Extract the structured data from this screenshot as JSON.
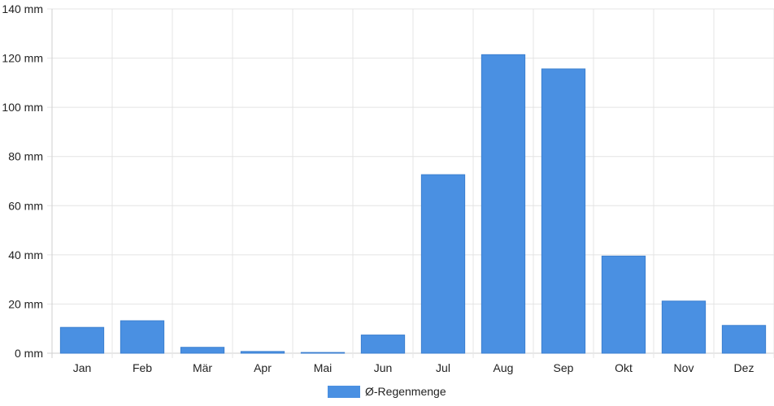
{
  "chart_data": {
    "type": "bar",
    "categories": [
      "Jan",
      "Feb",
      "Mär",
      "Apr",
      "Mai",
      "Jun",
      "Jul",
      "Aug",
      "Sep",
      "Okt",
      "Nov",
      "Dez"
    ],
    "series": [
      {
        "name": "Ø-Regenmenge",
        "values": [
          10.5,
          13.2,
          2.4,
          0.7,
          0.3,
          7.4,
          72.6,
          121.4,
          115.6,
          39.5,
          21.2,
          11.3
        ]
      }
    ],
    "y_ticks": [
      "0 mm",
      "20 mm",
      "40 mm",
      "60 mm",
      "80 mm",
      "100 mm",
      "120 mm",
      "140 mm"
    ],
    "ylim": [
      0,
      140
    ],
    "y_unit": "mm",
    "grid": true,
    "legend_position": "bottom",
    "colors": {
      "bar": "#4a90e2",
      "bar_stroke": "#3b7fd0",
      "grid": "#e4e4e4",
      "axis": "#cfcfcf"
    }
  }
}
